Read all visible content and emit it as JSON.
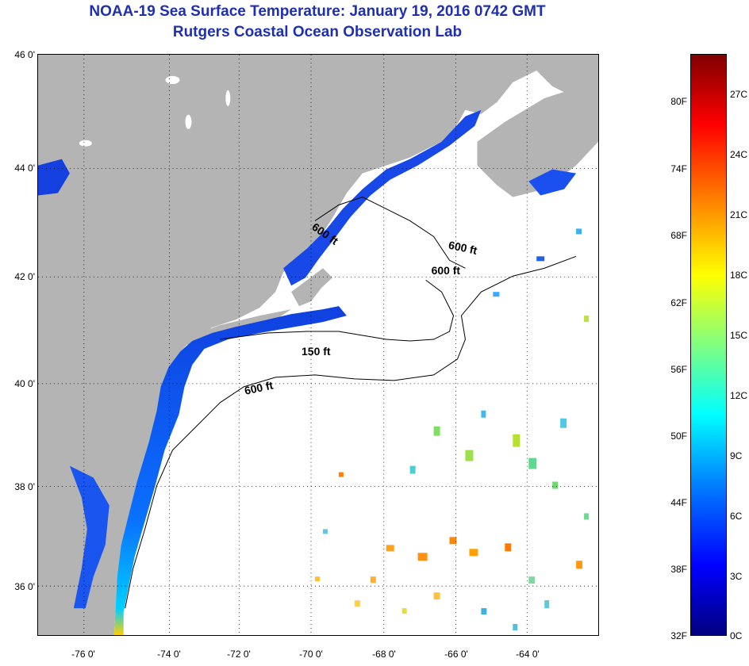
{
  "header": {
    "title": "NOAA-19 Sea Surface Temperature:  January 19, 2016 0742 GMT",
    "subtitle": "Rutgers Coastal Ocean Observation Lab"
  },
  "map": {
    "lat_labels": [
      "46 0'",
      "44 0'",
      "42 0'",
      "40 0'",
      "38 0'",
      "36 0'"
    ],
    "lon_labels": [
      "-76 0'",
      "-74 0'",
      "-72 0'",
      "-70 0'",
      "-68 0'",
      "-66 0'",
      "-64 0'"
    ],
    "contour_labels": [
      "600 ft",
      "600 ft",
      "600 ft",
      "150 ft",
      "600 ft"
    ],
    "land_color": "#b4b4b4",
    "cloud_color": "#ffffff"
  },
  "colorbar": {
    "fahrenheit": [
      "80F",
      "74F",
      "68F",
      "62F",
      "56F",
      "50F",
      "44F",
      "38F",
      "32F"
    ],
    "celsius": [
      "27C",
      "24C",
      "21C",
      "18C",
      "15C",
      "12C",
      "9C",
      "6C",
      "3C",
      "0C"
    ]
  }
}
